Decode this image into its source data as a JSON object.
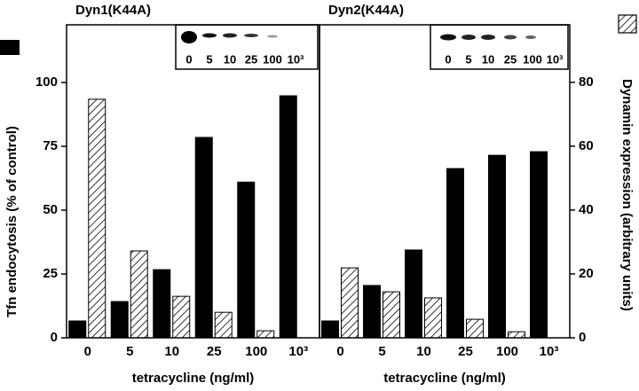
{
  "chart_data": [
    {
      "type": "bar",
      "title": "Dyn1(K44A)",
      "xlabel": "tetracycline (ng/ml)",
      "ylabel": "Tfn endocytosis (% of control)",
      "categories": [
        "0",
        "5",
        "10",
        "25",
        "100",
        "10³"
      ],
      "series": [
        {
          "color": "#000000",
          "fill": "solid",
          "values": [
            6.6,
            14.2,
            26.7,
            78.5,
            61,
            94.8
          ]
        },
        {
          "color": "#000000",
          "fill": "hatch",
          "axis": "y2",
          "values": [
            74.7,
            27.2,
            13,
            8,
            2.2,
            0
          ]
        }
      ],
      "ylim": [
        0,
        122.6
      ],
      "yticks": [
        0,
        25,
        50,
        75,
        100
      ],
      "y2lim": [
        0,
        98
      ]
    },
    {
      "type": "bar",
      "title": "Dyn2(K44A)",
      "xlabel": "tetracycline (ng/ml)",
      "y2label": "Dynamin expression (arbitrary units)",
      "categories": [
        "0",
        "5",
        "10",
        "25",
        "100",
        "10³"
      ],
      "series": [
        {
          "color": "#000000",
          "fill": "solid",
          "values": [
            6.6,
            20.5,
            34.4,
            66.3,
            71.5,
            72.9
          ]
        },
        {
          "color": "#000000",
          "fill": "hatch",
          "axis": "y2",
          "values": [
            21.9,
            14.4,
            12.5,
            5.8,
            1.9,
            0
          ]
        }
      ],
      "ylim": [
        0,
        122.6
      ],
      "y2lim": [
        0,
        98
      ],
      "y2ticks": [
        0,
        20,
        40,
        60,
        80
      ]
    }
  ]
}
